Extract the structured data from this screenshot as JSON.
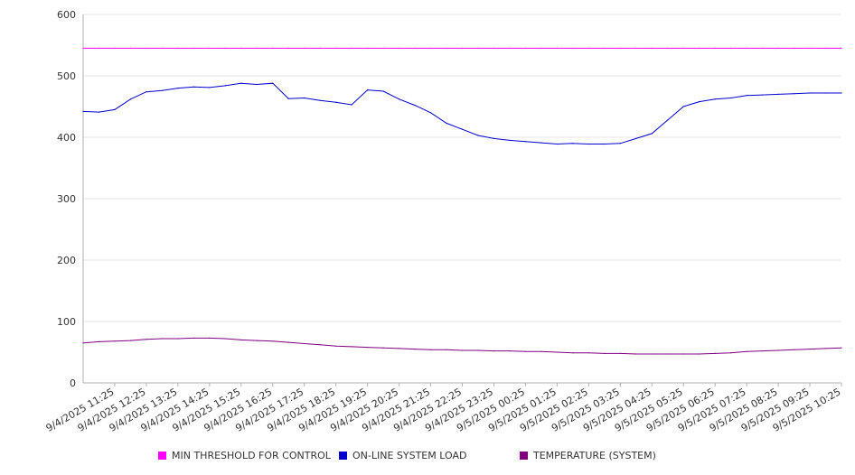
{
  "chart_data": {
    "type": "line",
    "ylim": [
      0,
      600
    ],
    "yticks": [
      "0",
      "100",
      "200",
      "300",
      "400",
      "500",
      "600"
    ],
    "grid": true,
    "legend_position": "bottom",
    "x_tick_labels": [
      "9/4/2025 11:25",
      "9/4/2025 12:25",
      "9/4/2025 13:25",
      "9/4/2025 14:25",
      "9/4/2025 15:25",
      "9/4/2025 16:25",
      "9/4/2025 17:25",
      "9/4/2025 18:25",
      "9/4/2025 19:25",
      "9/4/2025 20:25",
      "9/4/2025 21:25",
      "9/4/2025 22:25",
      "9/4/2025 23:25",
      "9/5/2025 00:25",
      "9/5/2025 01:25",
      "9/5/2025 02:25",
      "9/5/2025 03:25",
      "9/5/2025 04:25",
      "9/5/2025 05:25",
      "9/5/2025 06:25",
      "9/5/2025 07:25",
      "9/5/2025 08:25",
      "9/5/2025 09:25",
      "9/5/2025 10:25"
    ],
    "x_hours": [
      0,
      0.5,
      1,
      1.5,
      2,
      2.5,
      3,
      3.5,
      4,
      4.5,
      5,
      5.5,
      6,
      6.5,
      7,
      7.5,
      8,
      8.5,
      9,
      9.5,
      10,
      10.5,
      11,
      11.5,
      12,
      12.5,
      13,
      13.5,
      14,
      14.5,
      15,
      15.5,
      16,
      16.5,
      17,
      17.5,
      18,
      18.5,
      19,
      19.5,
      20,
      20.5,
      21,
      21.5,
      22,
      22.5,
      23,
      23.5,
      24
    ],
    "series": [
      {
        "name": "MIN THRESHOLD FOR CONTROL",
        "color": "#ff00ff",
        "values": [
          545,
          545,
          545,
          545,
          545,
          545,
          545,
          545,
          545,
          545,
          545,
          545,
          545,
          545,
          545,
          545,
          545,
          545,
          545,
          545,
          545,
          545,
          545,
          545,
          545,
          545,
          545,
          545,
          545,
          545,
          545,
          545,
          545,
          545,
          545,
          545,
          545,
          545,
          545,
          545,
          545,
          545,
          545,
          545,
          545,
          545,
          545,
          545,
          545
        ]
      },
      {
        "name": "ON-LINE SYSTEM LOAD",
        "color": "#0000cc",
        "values": [
          442,
          441,
          445,
          462,
          474,
          476,
          480,
          482,
          481,
          484,
          488,
          486,
          488,
          463,
          464,
          460,
          457,
          453,
          477,
          475,
          462,
          452,
          440,
          423,
          413,
          403,
          398,
          395,
          393,
          391,
          389,
          390,
          389,
          389,
          390,
          398,
          406,
          428,
          450,
          458,
          462,
          464,
          468,
          469,
          470,
          471,
          472,
          472,
          472
        ]
      },
      {
        "name": "TEMPERATURE (SYSTEM)",
        "color": "#800080",
        "values": [
          65,
          67,
          68,
          69,
          71,
          72,
          72,
          73,
          73,
          72,
          70,
          69,
          68,
          66,
          64,
          62,
          60,
          59,
          58,
          57,
          56,
          55,
          54,
          54,
          53,
          53,
          52,
          52,
          51,
          51,
          50,
          49,
          49,
          48,
          48,
          47,
          47,
          47,
          47,
          47,
          48,
          49,
          51,
          52,
          53,
          54,
          55,
          56,
          57
        ]
      }
    ]
  }
}
